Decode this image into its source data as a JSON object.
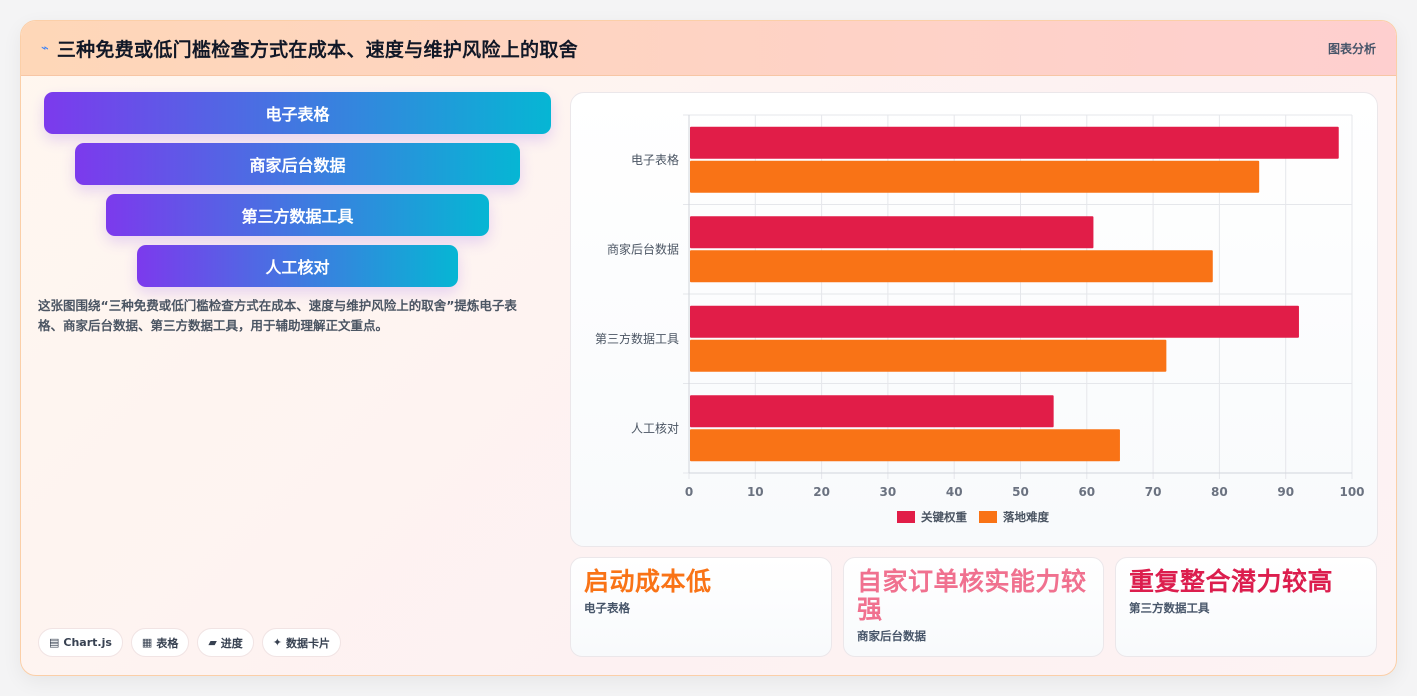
{
  "header": {
    "icon": "sparkle-icon",
    "title": "三种免费或低门槛检查方式在成本、速度与维护风险上的取舍",
    "tag": "图表分析"
  },
  "funnel": [
    "电子表格",
    "商家后台数据",
    "第三方数据工具",
    "人工核对"
  ],
  "description": "这张图围绕“三种免费或低门槛检查方式在成本、速度与维护风险上的取舍”提炼电子表格、商家后台数据、第三方数据工具，用于辅助理解正文重点。",
  "chips": [
    {
      "icon": "▤",
      "label": "Chart.js"
    },
    {
      "icon": "▦",
      "label": "表格"
    },
    {
      "icon": "▰",
      "label": "进度"
    },
    {
      "icon": "✦",
      "label": "数据卡片"
    }
  ],
  "kpis": [
    {
      "value": "启动成本低",
      "label": "电子表格",
      "color": "#f97316"
    },
    {
      "value": "自家订单核实能力较强",
      "label": "商家后台数据",
      "color": "#f0718f"
    },
    {
      "value": "重复整合潜力较高",
      "label": "第三方数据工具",
      "color": "#dc1e4e"
    }
  ],
  "chart_data": {
    "type": "bar",
    "orientation": "horizontal",
    "categories": [
      "电子表格",
      "商家后台数据",
      "第三方数据工具",
      "人工核对"
    ],
    "series": [
      {
        "name": "关键权重",
        "color": "#e11d48",
        "values": [
          98,
          61,
          92,
          55
        ]
      },
      {
        "name": "落地难度",
        "color": "#f97316",
        "values": [
          86,
          79,
          72,
          65
        ]
      }
    ],
    "xlim": [
      0,
      100
    ],
    "xticks": [
      "0",
      "10",
      "20",
      "30",
      "40",
      "50",
      "60",
      "70",
      "80",
      "90",
      "100"
    ],
    "grid": true,
    "legend_position": "bottom"
  }
}
